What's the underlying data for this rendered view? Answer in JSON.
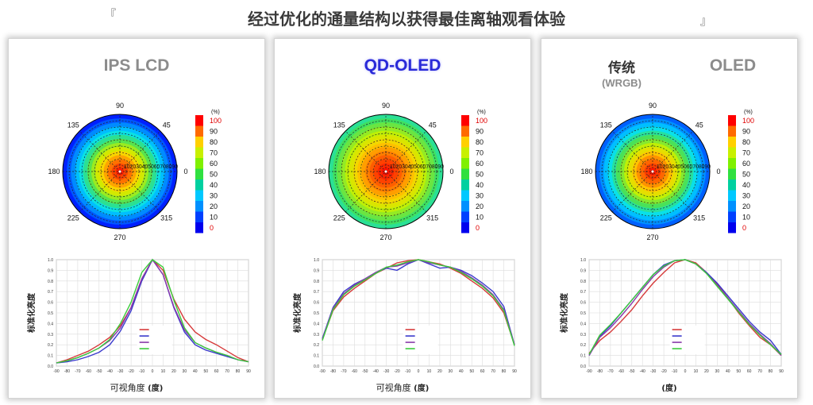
{
  "headline": "经过优化的通量结构以获得最佳离轴观看体验",
  "bracket_left": "『",
  "bracket_right": "』",
  "colors": {
    "ips_title": "#8c8c8c",
    "qd_title": "#2a2ad8",
    "oled_title": "#8c8c8c",
    "series": [
      "#d63a3a",
      "#3a3acc",
      "#8a3aaa",
      "#3acc3a"
    ]
  },
  "panels": [
    {
      "title": "IPS LCD",
      "xlabel": "可视角度",
      "xlabel_unit": "(度)"
    },
    {
      "title": "QD-OLED",
      "xlabel": "可视角度",
      "xlabel_unit": "(度)"
    },
    {
      "title_a": "传统",
      "title_sub": "(WRGB)",
      "title_b": "OLED",
      "xlabel_unit": "(度)"
    }
  ],
  "chart_data": [
    {
      "type": "heatmap",
      "subtype": "polar",
      "panel": "IPS LCD",
      "angle_labels": [
        "90",
        "45",
        "0",
        "315",
        "270",
        "225",
        "180",
        "135"
      ],
      "ring_labels": "102030405060708090",
      "colorbar_unit": "(%)",
      "colorbar_ticks": [
        "100",
        "90",
        "80",
        "70",
        "60",
        "50",
        "40",
        "30",
        "20",
        "10",
        "0"
      ],
      "peak_value": 100,
      "edge_value": 5
    },
    {
      "type": "line",
      "panel": "IPS LCD",
      "ylabel": "标准化亮度",
      "x": [
        -90,
        -80,
        -70,
        -60,
        -50,
        -40,
        -30,
        -20,
        -10,
        0,
        10,
        20,
        30,
        40,
        50,
        60,
        70,
        80,
        90
      ],
      "xlim": [
        -90,
        90
      ],
      "ylim": [
        0,
        1
      ],
      "yticks": [
        "0.0",
        "0.1",
        "0.2",
        "0.3",
        "0.4",
        "0.5",
        "0.6",
        "0.7",
        "0.8",
        "0.9",
        "1.0"
      ],
      "series": [
        {
          "values": [
            0.03,
            0.06,
            0.1,
            0.14,
            0.2,
            0.27,
            0.38,
            0.55,
            0.82,
            1.0,
            0.9,
            0.63,
            0.44,
            0.32,
            0.25,
            0.2,
            0.14,
            0.08,
            0.04
          ]
        },
        {
          "values": [
            0.03,
            0.04,
            0.06,
            0.09,
            0.13,
            0.2,
            0.33,
            0.52,
            0.8,
            1.0,
            0.86,
            0.55,
            0.32,
            0.2,
            0.15,
            0.12,
            0.09,
            0.06,
            0.04
          ]
        },
        {
          "values": [
            0.03,
            0.05,
            0.08,
            0.12,
            0.17,
            0.24,
            0.36,
            0.55,
            0.82,
            1.0,
            0.86,
            0.56,
            0.34,
            0.22,
            0.17,
            0.13,
            0.1,
            0.06,
            0.04
          ]
        },
        {
          "values": [
            0.03,
            0.05,
            0.08,
            0.12,
            0.17,
            0.25,
            0.4,
            0.6,
            0.88,
            1.0,
            0.93,
            0.62,
            0.36,
            0.22,
            0.17,
            0.13,
            0.1,
            0.06,
            0.04
          ]
        }
      ]
    },
    {
      "type": "heatmap",
      "subtype": "polar",
      "panel": "QD-OLED",
      "angle_labels": [
        "90",
        "45",
        "0",
        "315",
        "270",
        "225",
        "180",
        "135"
      ],
      "ring_labels": "102030405060708090",
      "colorbar_unit": "(%)",
      "colorbar_ticks": [
        "100",
        "90",
        "80",
        "70",
        "60",
        "50",
        "40",
        "30",
        "20",
        "10",
        "0"
      ],
      "peak_value": 100,
      "edge_value": 45
    },
    {
      "type": "line",
      "panel": "QD-OLED",
      "ylabel": "标准化亮度",
      "x": [
        -90,
        -80,
        -70,
        -60,
        -50,
        -40,
        -30,
        -20,
        -10,
        0,
        10,
        20,
        30,
        40,
        50,
        60,
        70,
        80,
        90
      ],
      "xlim": [
        -90,
        90
      ],
      "ylim": [
        0,
        1
      ],
      "yticks": [
        "0.0",
        "0.1",
        "0.2",
        "0.3",
        "0.4",
        "0.5",
        "0.6",
        "0.7",
        "0.8",
        "0.9",
        "1.0"
      ],
      "series": [
        {
          "values": [
            0.25,
            0.52,
            0.65,
            0.73,
            0.8,
            0.87,
            0.92,
            0.97,
            0.99,
            1.0,
            0.98,
            0.96,
            0.92,
            0.87,
            0.8,
            0.73,
            0.64,
            0.5,
            0.2
          ]
        },
        {
          "values": [
            0.26,
            0.55,
            0.7,
            0.77,
            0.82,
            0.88,
            0.92,
            0.9,
            0.96,
            1.0,
            0.96,
            0.92,
            0.93,
            0.9,
            0.85,
            0.78,
            0.7,
            0.56,
            0.2
          ]
        },
        {
          "values": [
            0.25,
            0.54,
            0.68,
            0.76,
            0.82,
            0.88,
            0.93,
            0.94,
            0.97,
            1.0,
            0.97,
            0.95,
            0.93,
            0.89,
            0.83,
            0.76,
            0.67,
            0.53,
            0.2
          ]
        },
        {
          "values": [
            0.24,
            0.53,
            0.67,
            0.75,
            0.81,
            0.87,
            0.93,
            0.95,
            0.98,
            1.0,
            0.98,
            0.95,
            0.93,
            0.88,
            0.82,
            0.75,
            0.66,
            0.52,
            0.19
          ]
        }
      ]
    },
    {
      "type": "heatmap",
      "subtype": "polar",
      "panel": "传统 OLED (WRGB)",
      "angle_labels": [
        "90",
        "45",
        "0",
        "315",
        "270",
        "225",
        "180",
        "135"
      ],
      "ring_labels": "102030405060708090",
      "colorbar_unit": "(%)",
      "colorbar_ticks": [
        "100",
        "90",
        "80",
        "70",
        "60",
        "50",
        "40",
        "30",
        "20",
        "10",
        "0"
      ],
      "peak_value": 100,
      "edge_value": 15
    },
    {
      "type": "line",
      "panel": "传统 OLED (WRGB)",
      "ylabel": "标准化亮度",
      "x": [
        -90,
        -80,
        -70,
        -60,
        -50,
        -40,
        -30,
        -20,
        -10,
        0,
        10,
        20,
        30,
        40,
        50,
        60,
        70,
        80,
        90
      ],
      "xlim": [
        -90,
        90
      ],
      "ylim": [
        0,
        1
      ],
      "yticks": [
        "0.0",
        "0.1",
        "0.2",
        "0.3",
        "0.4",
        "0.5",
        "0.6",
        "0.7",
        "0.8",
        "0.9",
        "1.0"
      ],
      "series": [
        {
          "values": [
            0.12,
            0.24,
            0.32,
            0.42,
            0.53,
            0.66,
            0.78,
            0.88,
            0.97,
            1.0,
            0.97,
            0.88,
            0.77,
            0.64,
            0.5,
            0.38,
            0.27,
            0.2,
            0.1
          ]
        },
        {
          "values": [
            0.1,
            0.28,
            0.38,
            0.5,
            0.62,
            0.74,
            0.86,
            0.95,
            0.99,
            1.0,
            0.96,
            0.88,
            0.78,
            0.66,
            0.54,
            0.42,
            0.32,
            0.24,
            0.11
          ]
        },
        {
          "values": [
            0.1,
            0.27,
            0.36,
            0.47,
            0.59,
            0.72,
            0.84,
            0.93,
            0.99,
            1.0,
            0.96,
            0.87,
            0.76,
            0.64,
            0.52,
            0.4,
            0.3,
            0.21,
            0.1
          ]
        },
        {
          "values": [
            0.11,
            0.29,
            0.39,
            0.5,
            0.62,
            0.74,
            0.86,
            0.94,
            0.99,
            1.0,
            0.96,
            0.87,
            0.75,
            0.63,
            0.51,
            0.39,
            0.29,
            0.2,
            0.11
          ]
        }
      ]
    }
  ]
}
